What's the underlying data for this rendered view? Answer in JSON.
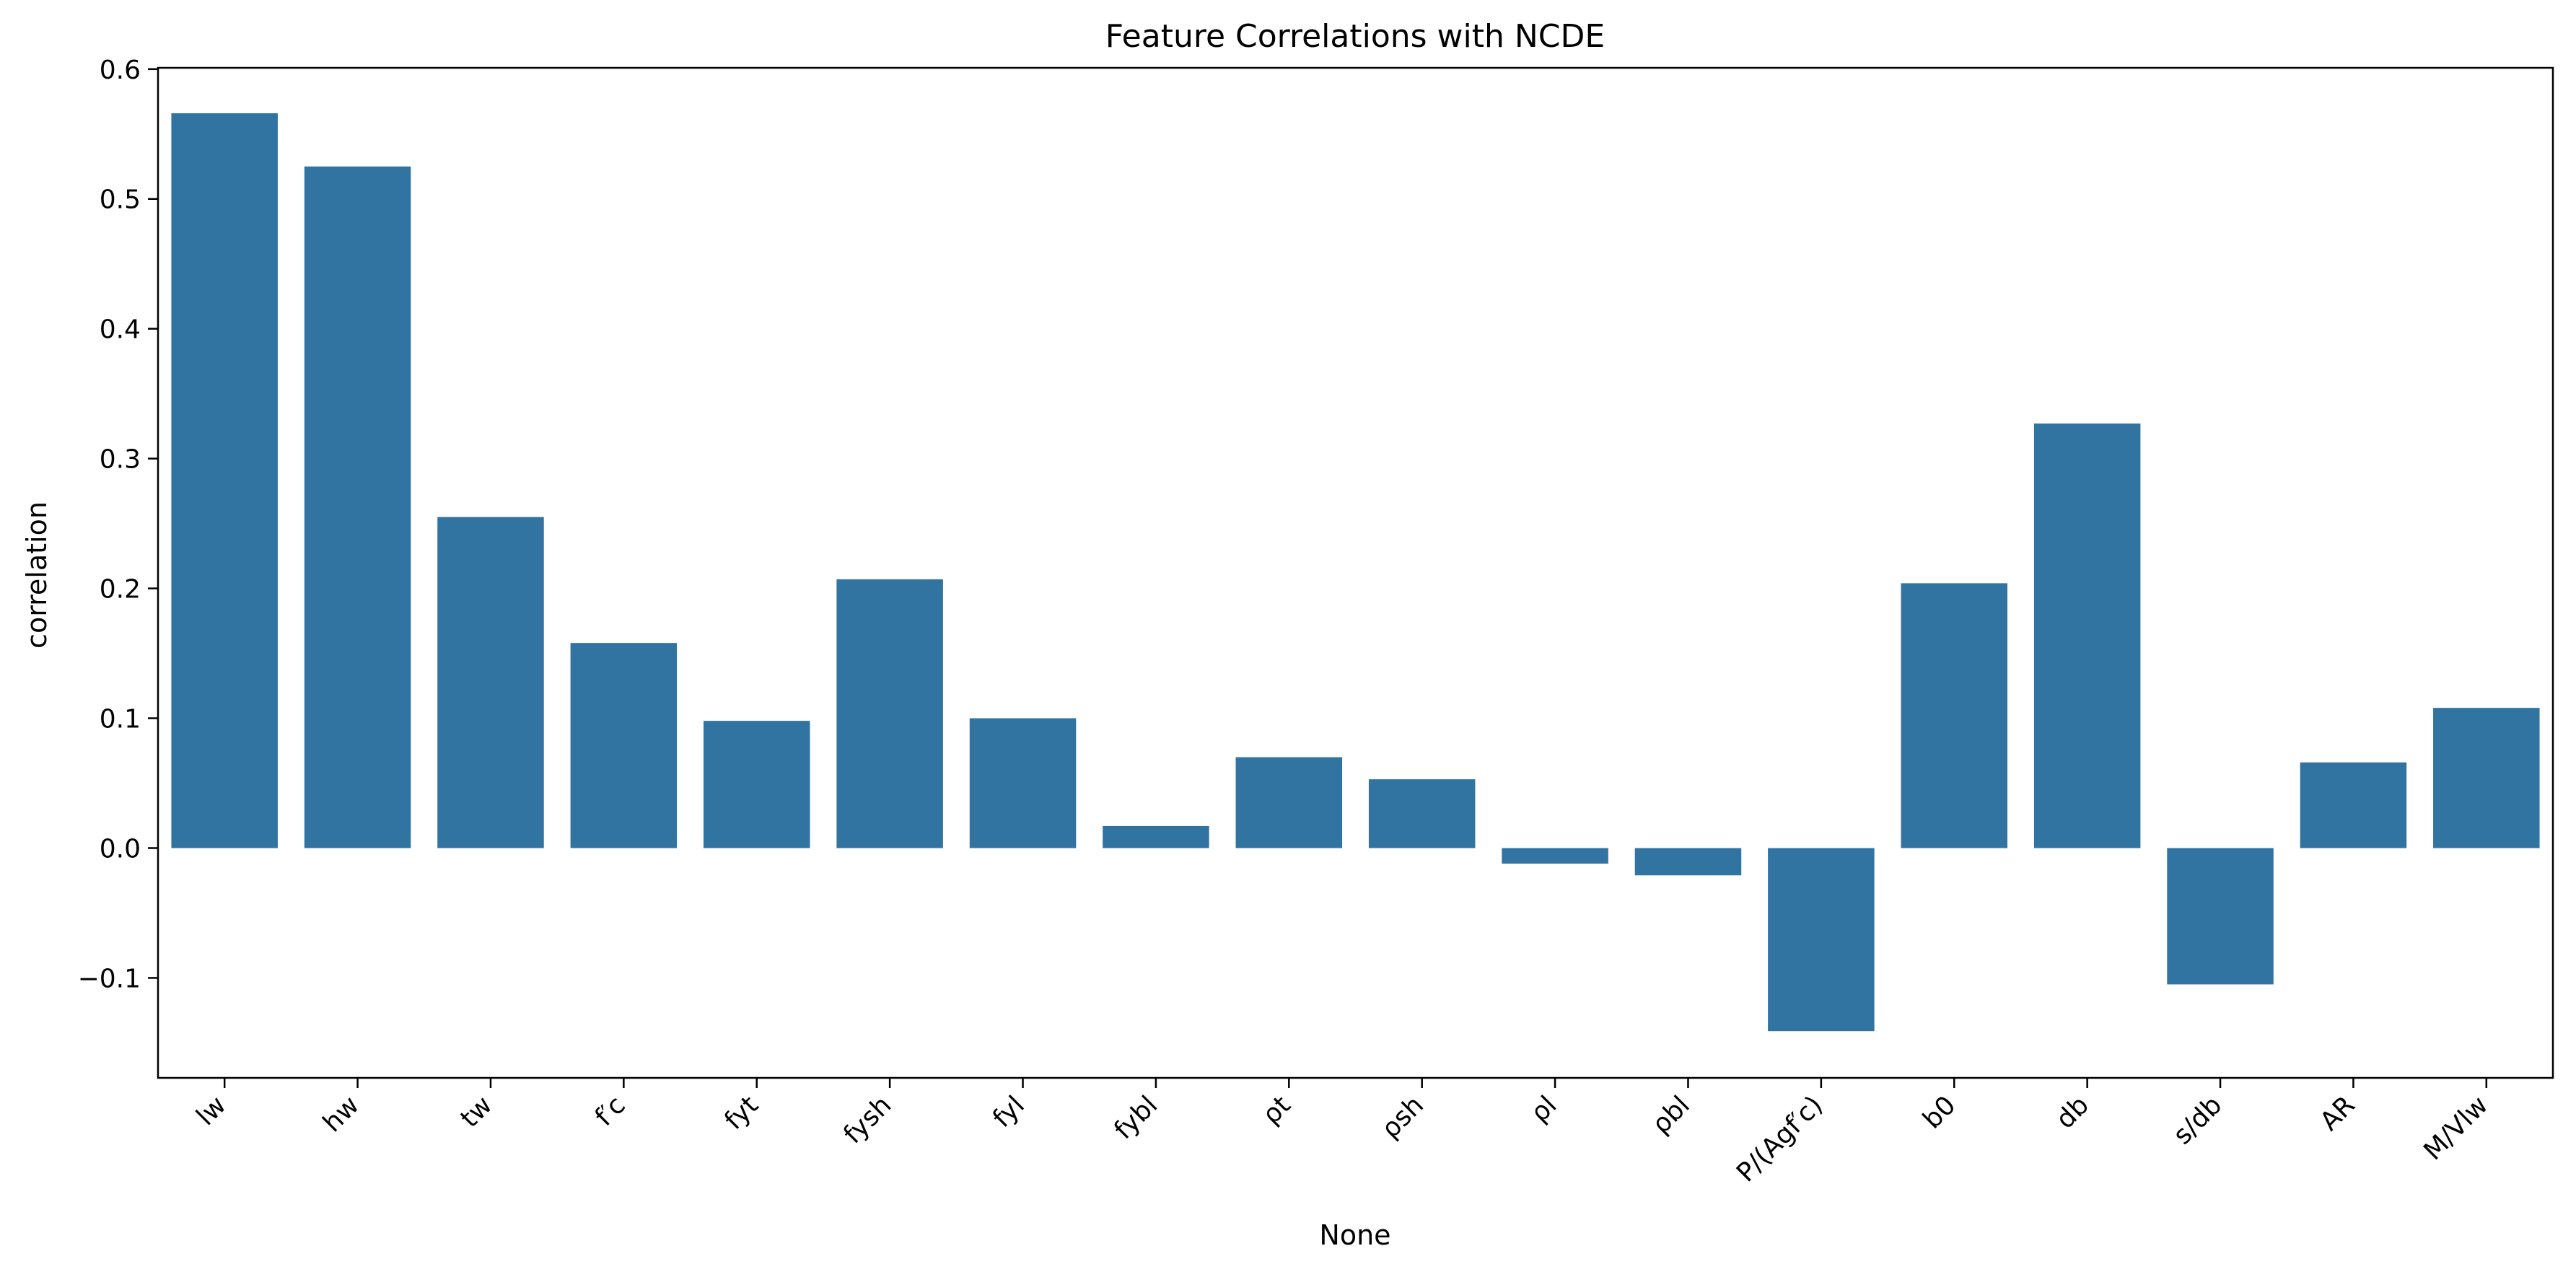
{
  "chart_data": {
    "type": "bar",
    "title": "Feature Correlations with NCDE",
    "xlabel": "None",
    "ylabel": "correlation",
    "categories": [
      "lw",
      "hw",
      "tw",
      "f′c",
      "fyt",
      "fysh",
      "fyl",
      "fybl",
      "ρt",
      "ρsh",
      "ρl",
      "ρbl",
      "P/(Agf′c)",
      "b0",
      "db",
      "s/db",
      "AR",
      "M/Vlw"
    ],
    "values": [
      0.566,
      0.525,
      0.255,
      0.158,
      0.098,
      0.207,
      0.1,
      0.017,
      0.07,
      0.053,
      -0.012,
      -0.021,
      -0.141,
      0.204,
      0.327,
      -0.105,
      0.066,
      0.108
    ],
    "ylim": [
      -0.177,
      0.601
    ],
    "yticks": [
      -0.1,
      0.0,
      0.1,
      0.2,
      0.3,
      0.4,
      0.5,
      0.6
    ],
    "ytick_labels": [
      "−0.1",
      "0.0",
      "0.1",
      "0.2",
      "0.3",
      "0.4",
      "0.5",
      "0.6"
    ],
    "bar_color": "#3274a1",
    "grid": false,
    "xtick_rotation": "45°"
  }
}
